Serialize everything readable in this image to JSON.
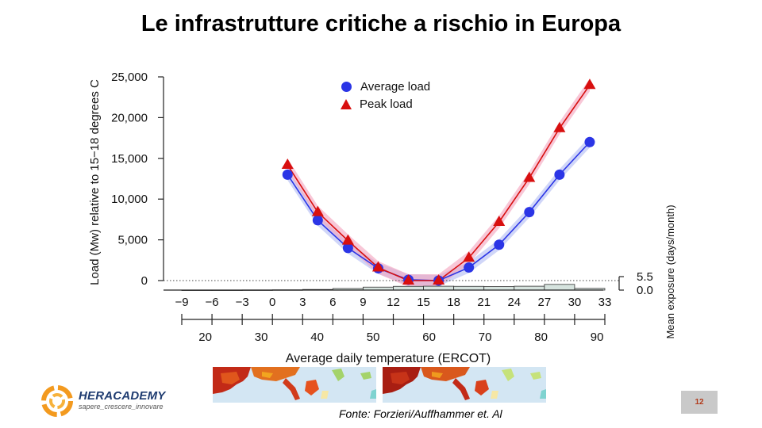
{
  "slide": {
    "title": "Le infrastrutture critiche a rischio in Europa",
    "source": "Fonte: Forzieri/Auffhammer et. Al",
    "page_number": "12",
    "brand": {
      "name": "HERACADEMY",
      "tagline": "sapere_crescere_innovare"
    },
    "colors": {
      "average": "#2b35e6",
      "peak": "#d80f0f",
      "brand_orange": "#f39a1f",
      "brand_navy": "#1e3b70"
    }
  },
  "chart_data": {
    "type": "line",
    "ylabel": "Load (Mw) relative to 15−18 degrees C",
    "xlabel": "Average daily temperature (ERCOT)",
    "ylim": [
      0,
      25000
    ],
    "yticks": [
      0,
      5000,
      10000,
      15000,
      20000,
      25000
    ],
    "ytick_labels": [
      "0",
      "5,000",
      "10,000",
      "15,000",
      "20,000",
      "25,000"
    ],
    "x_celsius_ticks": [
      -9,
      -6,
      -3,
      0,
      3,
      6,
      9,
      12,
      15,
      18,
      21,
      24,
      27,
      30,
      33
    ],
    "x_fahrenheit_ticks": [
      20,
      30,
      40,
      50,
      60,
      70,
      80,
      90
    ],
    "legend": {
      "position": "top-center",
      "entries": [
        "Average load",
        "Peak load"
      ]
    },
    "series": [
      {
        "name": "Average load",
        "marker": "circle",
        "x": [
          1.5,
          4.5,
          7.5,
          10.5,
          13.5,
          16.5,
          19.5,
          22.5,
          25.5,
          28.5,
          31.5
        ],
        "y": [
          13000,
          7400,
          4000,
          1500,
          100,
          0,
          1600,
          4400,
          8400,
          13000,
          17000
        ]
      },
      {
        "name": "Peak load",
        "marker": "triangle",
        "x": [
          1.5,
          4.5,
          7.5,
          10.5,
          13.5,
          16.5,
          19.5,
          22.5,
          25.5,
          28.5,
          31.5
        ],
        "y": [
          14200,
          8400,
          4900,
          1600,
          0,
          0,
          2800,
          7200,
          12600,
          18700,
          24000
        ]
      }
    ],
    "exposure": {
      "label": "Mean exposure (days/month)",
      "tick_labels": [
        "5.5",
        "0.0"
      ],
      "bins": [
        -9,
        -6,
        -3,
        0,
        3,
        6,
        9,
        12,
        15,
        18,
        21,
        24,
        27,
        30
      ],
      "values": [
        0.05,
        0.05,
        0.1,
        0.2,
        0.5,
        1.2,
        2.3,
        2.9,
        3.0,
        2.9,
        2.7,
        3.0,
        4.4,
        1.3
      ]
    }
  }
}
